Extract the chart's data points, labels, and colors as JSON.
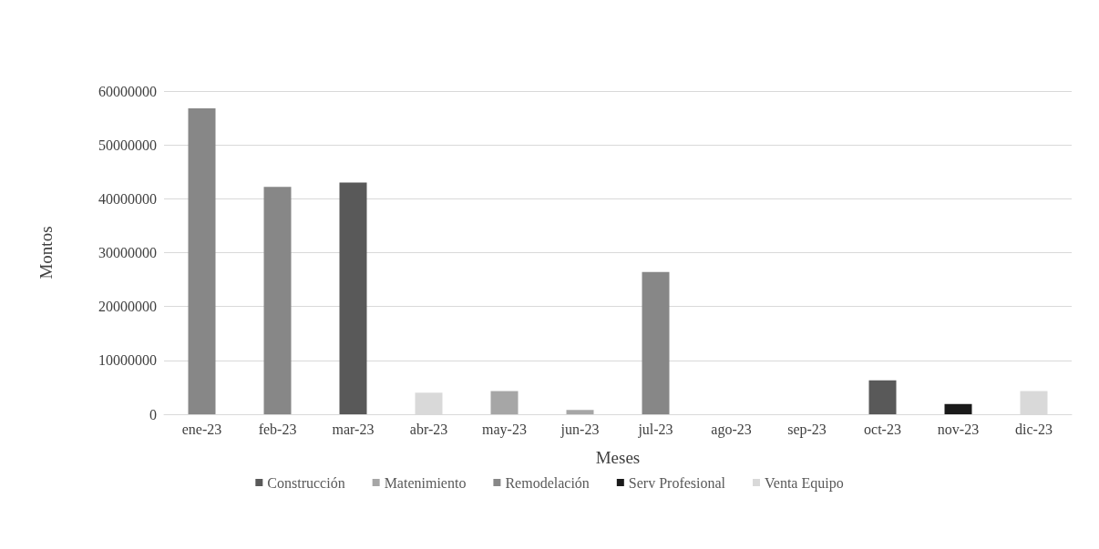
{
  "chart_data": {
    "type": "bar",
    "stacked": true,
    "xlabel": "Meses",
    "ylabel": "Montos",
    "categories": [
      "ene-23",
      "feb-23",
      "mar-23",
      "abr-23",
      "may-23",
      "jun-23",
      "jul-23",
      "ago-23",
      "sep-23",
      "oct-23",
      "nov-23",
      "dic-23"
    ],
    "series": [
      {
        "name": "Construcción",
        "color": "#595959",
        "values": [
          null,
          null,
          43000000,
          null,
          null,
          null,
          null,
          null,
          null,
          6300000,
          null,
          null
        ]
      },
      {
        "name": "Matenimiento",
        "color": "#a6a6a6",
        "values": [
          null,
          null,
          null,
          null,
          4300000,
          800000,
          null,
          null,
          null,
          null,
          null,
          null
        ]
      },
      {
        "name": "Remodelación",
        "color": "#878787",
        "values": [
          56800000,
          42200000,
          null,
          null,
          null,
          null,
          26400000,
          null,
          null,
          null,
          null,
          null
        ]
      },
      {
        "name": "Serv Profesional",
        "color": "#1a1a1a",
        "values": [
          null,
          null,
          null,
          null,
          null,
          null,
          null,
          null,
          null,
          null,
          1900000,
          null
        ]
      },
      {
        "name": "Venta Equipo",
        "color": "#d9d9d9",
        "values": [
          null,
          null,
          null,
          4000000,
          null,
          null,
          null,
          null,
          null,
          null,
          null,
          4300000
        ]
      }
    ],
    "ylim": [
      0,
      60000000
    ],
    "yticks": [
      0,
      10000000,
      20000000,
      30000000,
      40000000,
      50000000,
      60000000
    ],
    "grid": "y",
    "legend": "bottom"
  }
}
